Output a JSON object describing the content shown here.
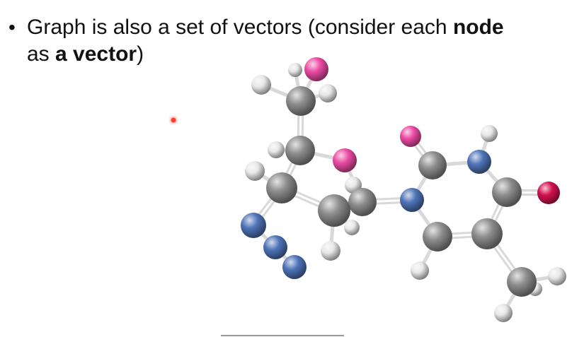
{
  "slide": {
    "bullet": {
      "symbol": "•",
      "line1_pre": "Graph is also a set of vectors (consider each ",
      "line1_bold": "node",
      "line2_pre": "as ",
      "line2_bold": "a vector",
      "line2_post": ")"
    }
  },
  "figure": {
    "subject": "molecule-ball-and-stick",
    "colors": {
      "carbon": "#8d8d8d",
      "hydrogen": "#e8e8e8",
      "oxygen": "#ec4aa3",
      "nitrogen": "#4f74b8",
      "oxygen_dark": "#d3104f",
      "bond": "#d9d9d9"
    }
  }
}
